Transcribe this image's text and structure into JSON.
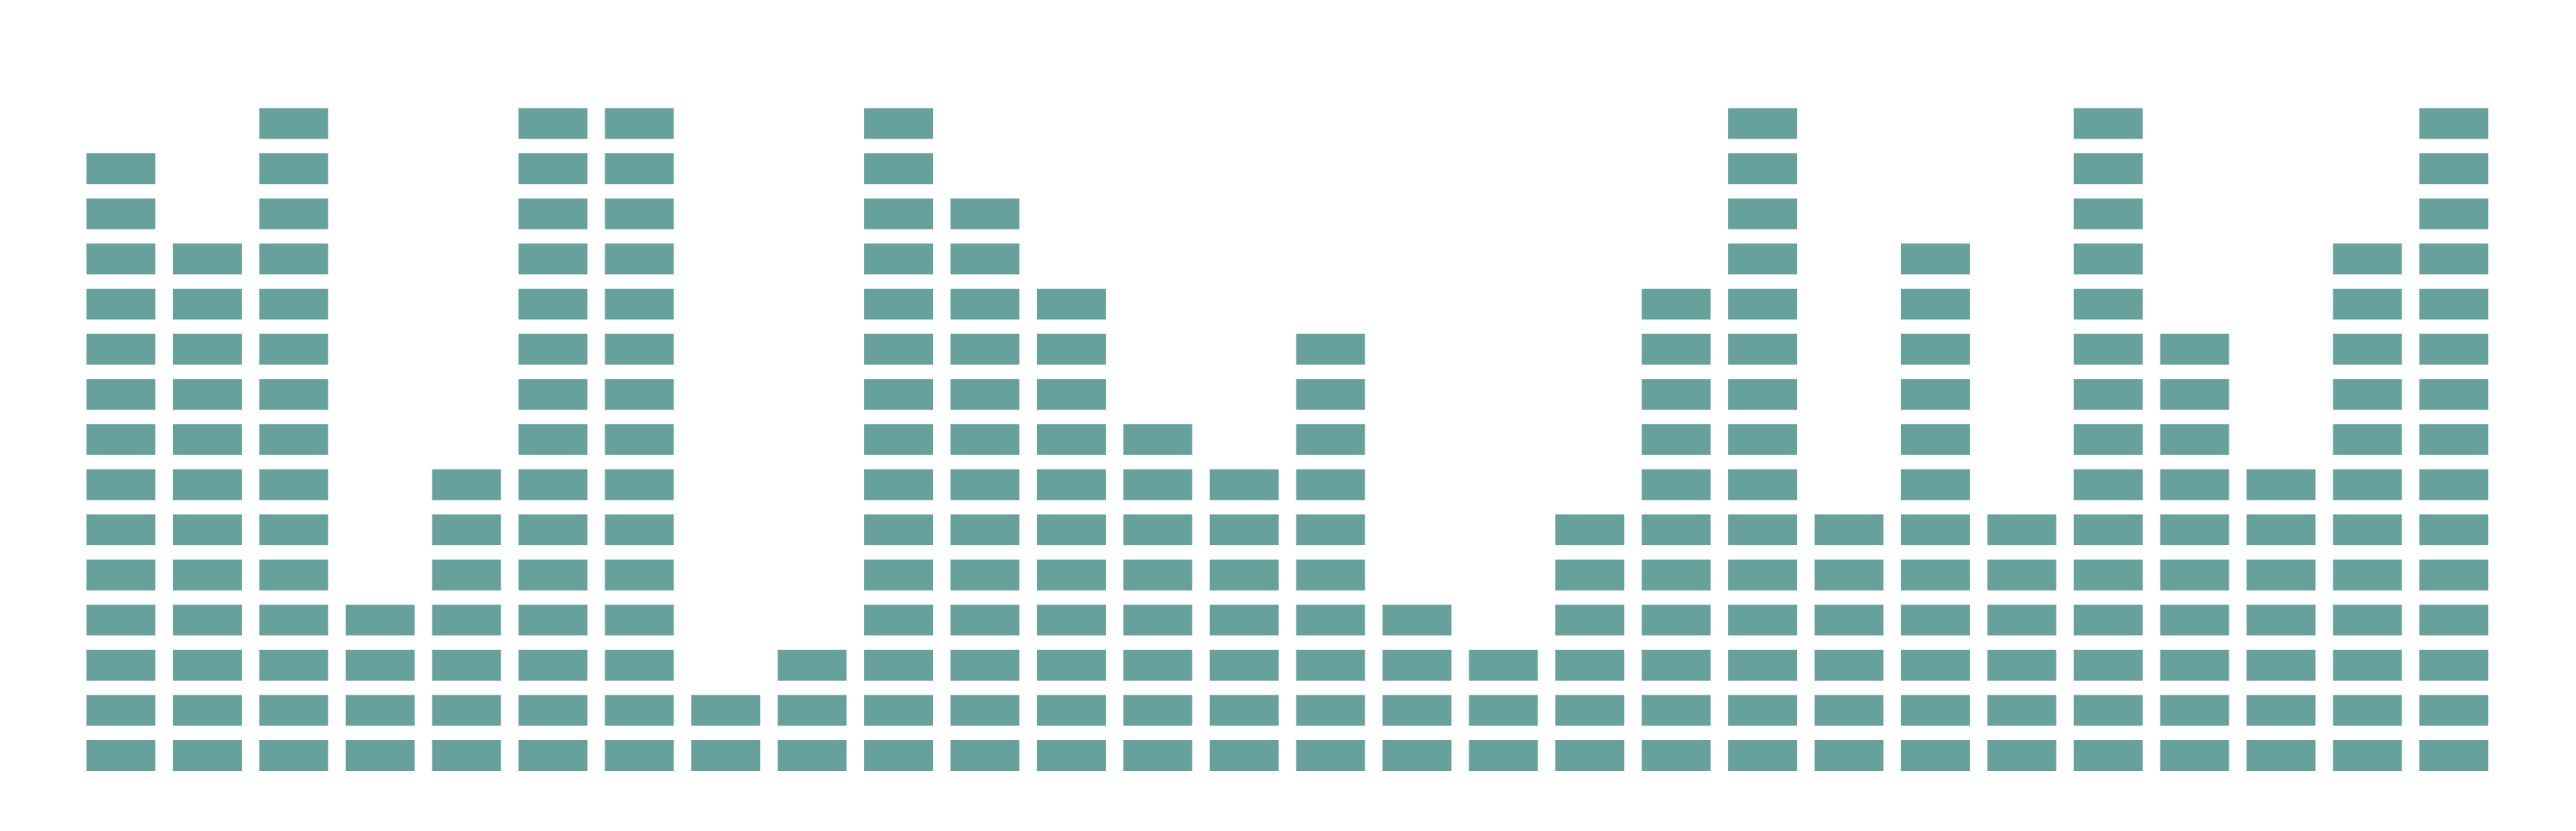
{
  "chart_data": {
    "type": "bar",
    "style": "segmented-equalizer",
    "values": [
      14,
      12,
      15,
      4,
      7,
      15,
      15,
      2,
      3,
      15,
      13,
      11,
      8,
      7,
      10,
      4,
      3,
      6,
      11,
      15,
      6,
      12,
      6,
      15,
      10,
      7,
      12,
      15
    ],
    "max_segments": 15,
    "bar_color": "#66a19c",
    "grid": false,
    "axes": false,
    "legend": false
  }
}
